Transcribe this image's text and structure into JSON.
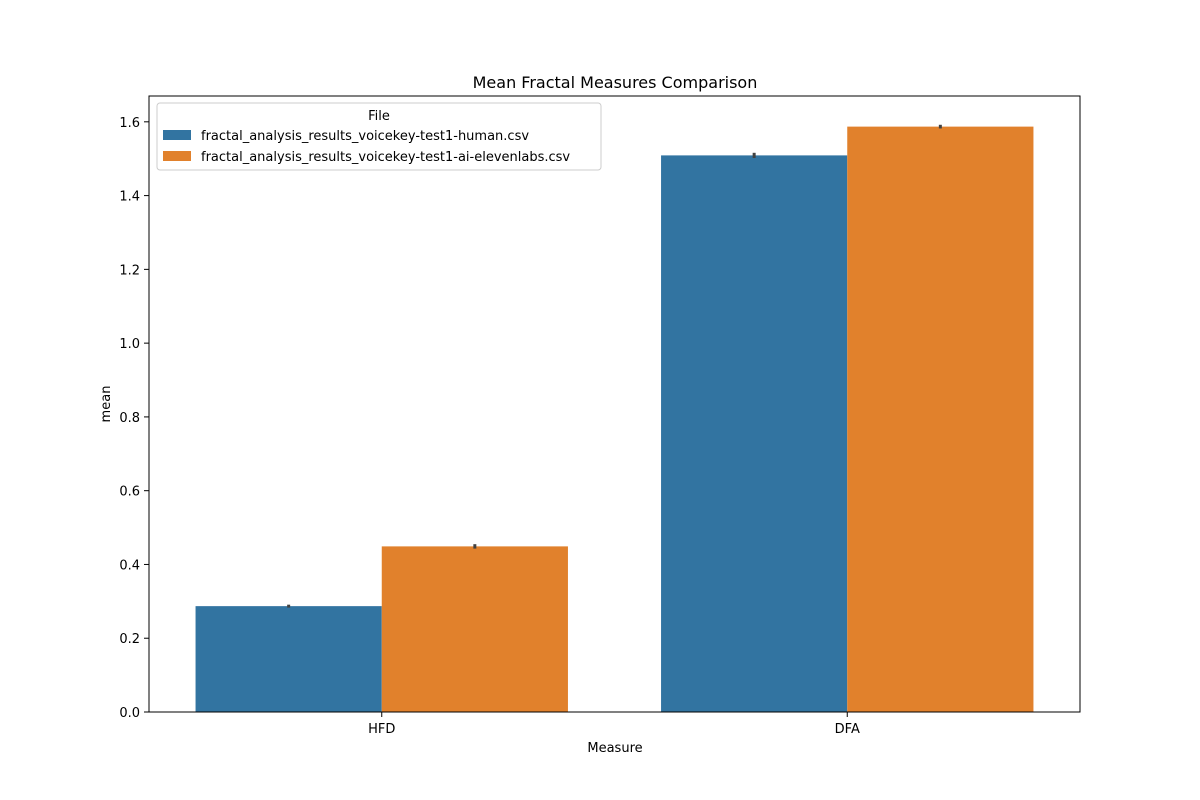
{
  "chart_data": {
    "type": "bar",
    "title": "Mean Fractal Measures Comparison",
    "xlabel": "Measure",
    "ylabel": "mean",
    "categories": [
      "HFD",
      "DFA"
    ],
    "ylim": [
      0,
      1.67
    ],
    "yticks": [
      0.0,
      0.2,
      0.4,
      0.6,
      0.8,
      1.0,
      1.2,
      1.4,
      1.6
    ],
    "ytick_labels": [
      "0.0",
      "0.2",
      "0.4",
      "0.6",
      "0.8",
      "1.0",
      "1.2",
      "1.4",
      "1.6"
    ],
    "grid": false,
    "legend": {
      "title": "File",
      "placement": "top-left"
    },
    "series": [
      {
        "name": "fractal_analysis_results_voicekey-test1-human.csv",
        "color": "#3274a1",
        "values": [
          0.287,
          1.509
        ],
        "error": [
          0.004,
          0.007
        ]
      },
      {
        "name": "fractal_analysis_results_voicekey-test1-ai-elevenlabs.csv",
        "color": "#e1812c",
        "values": [
          0.449,
          1.587
        ],
        "error": [
          0.006,
          0.005
        ]
      }
    ]
  }
}
